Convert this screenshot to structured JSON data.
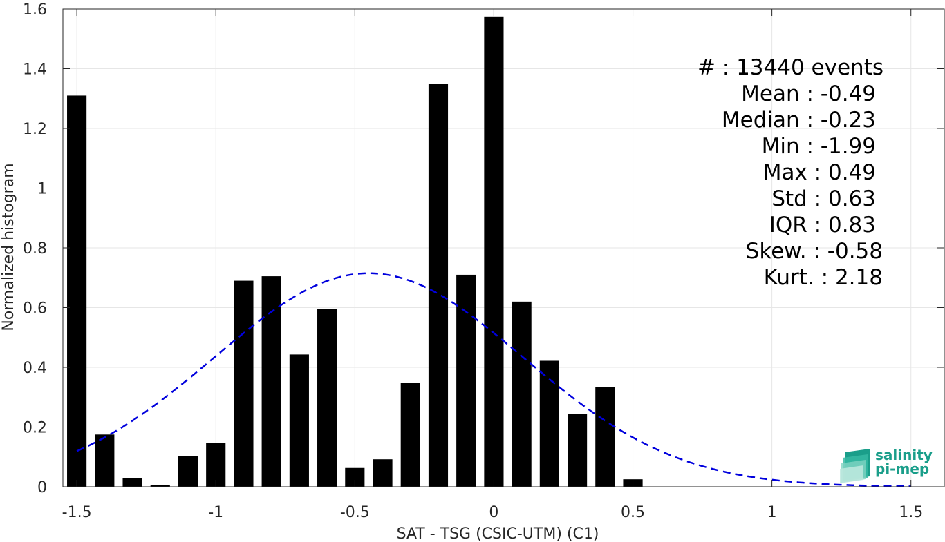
{
  "chart_data": {
    "type": "bar",
    "xlabel": "SAT - TSG (CSIC-UTM) (C1)",
    "ylabel": "Normalized histogram",
    "xlim": [
      -1.55,
      1.62
    ],
    "ylim": [
      0,
      1.6
    ],
    "grid": true,
    "bar_width": 0.07,
    "x_ticks": [
      -1.5,
      -1,
      -0.5,
      0,
      0.5,
      1,
      1.5
    ],
    "x_tick_labels": [
      "-1.5",
      "-1",
      "-0.5",
      "0",
      "0.5",
      "1",
      "1.5"
    ],
    "y_ticks": [
      0,
      0.2,
      0.4,
      0.6,
      0.8,
      1,
      1.2,
      1.4,
      1.6
    ],
    "y_tick_labels": [
      "0",
      "0.2",
      "0.4",
      "0.6",
      "0.8",
      "1",
      "1.2",
      "1.4",
      "1.6"
    ],
    "x": [
      -1.5,
      -1.4,
      -1.3,
      -1.2,
      -1.1,
      -1.0,
      -0.9,
      -0.8,
      -0.7,
      -0.6,
      -0.5,
      -0.4,
      -0.3,
      -0.2,
      -0.1,
      0.0,
      0.1,
      0.2,
      0.3,
      0.4,
      0.5
    ],
    "values": [
      1.31,
      0.175,
      0.03,
      0.005,
      0.103,
      0.147,
      0.69,
      0.705,
      0.443,
      0.595,
      0.063,
      0.092,
      0.348,
      1.35,
      0.71,
      1.575,
      0.62,
      0.422,
      0.245,
      0.335,
      0.025
    ],
    "bar_color": "#000000",
    "fit_curve": {
      "style": "dashed",
      "color": "#0000dd",
      "mean": -0.45,
      "std": 0.555,
      "peak": 0.715,
      "x_range": [
        -1.5,
        1.5
      ]
    },
    "stats": [
      {
        "id": "events",
        "text": "#  : 13440 events"
      },
      {
        "id": "mean",
        "text": "Mean : -0.49"
      },
      {
        "id": "median",
        "text": "Median : -0.23"
      },
      {
        "id": "min",
        "text": "Min : -1.99"
      },
      {
        "id": "max",
        "text": "Max : 0.49"
      },
      {
        "id": "std",
        "text": "Std : 0.63"
      },
      {
        "id": "iqr",
        "text": "IQR : 0.83"
      },
      {
        "id": "skew",
        "text": "Skew. : -0.58"
      },
      {
        "id": "kurt",
        "text": "Kurt. : 2.18"
      }
    ]
  },
  "logo": {
    "line1": "salinity",
    "line2": "pi-mep",
    "color": "#1a9e8a"
  }
}
